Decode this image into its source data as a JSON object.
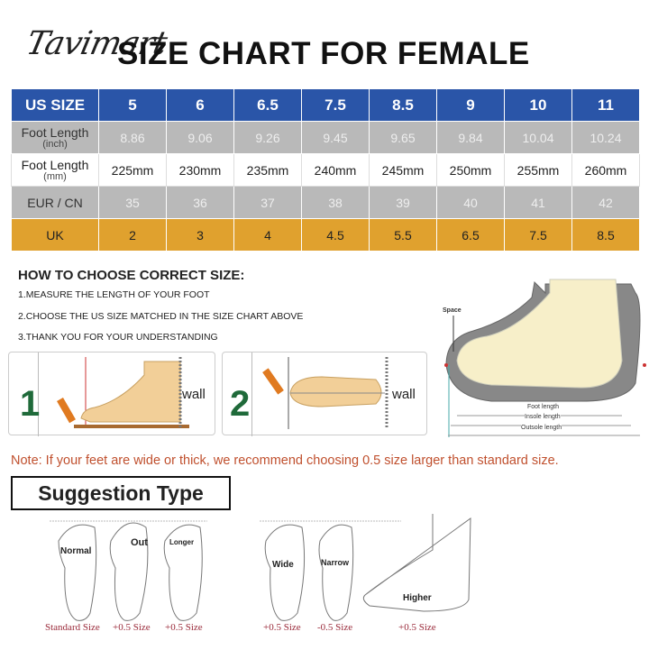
{
  "logo": "Tavimart",
  "title": "SIZE CHART FOR FEMALE",
  "table": {
    "header": {
      "label": "US SIZE",
      "values": [
        "5",
        "6",
        "6.5",
        "7.5",
        "8.5",
        "9",
        "10",
        "11"
      ]
    },
    "foot_inch": {
      "label": "Foot Length",
      "unit": "(inch)",
      "values": [
        "8.86",
        "9.06",
        "9.26",
        "9.45",
        "9.65",
        "9.84",
        "10.04",
        "10.24"
      ]
    },
    "foot_mm": {
      "label": "Foot Length",
      "unit": "(mm)",
      "values": [
        "225mm",
        "230mm",
        "235mm",
        "240mm",
        "245mm",
        "250mm",
        "255mm",
        "260mm"
      ]
    },
    "eur": {
      "label": "EUR / CN",
      "values": [
        "35",
        "36",
        "37",
        "38",
        "39",
        "40",
        "41",
        "42"
      ]
    },
    "uk": {
      "label": "UK",
      "values": [
        "2",
        "3",
        "4",
        "4.5",
        "5.5",
        "6.5",
        "7.5",
        "8.5"
      ]
    }
  },
  "howto": {
    "title": "HOW TO CHOOSE CORRECT SIZE:",
    "steps": [
      "1.MEASURE THE LENGTH OF YOUR FOOT",
      "2.CHOOSE THE US SIZE MATCHED IN THE SIZE CHART ABOVE",
      "3.THANK YOU FOR YOUR UNDERSTANDING"
    ]
  },
  "panels": [
    {
      "number": "1",
      "wall": "wall"
    },
    {
      "number": "2",
      "wall": "wall"
    }
  ],
  "diagram": {
    "space": "Space",
    "foot_length": "Foot length",
    "insole_length": "Insole length",
    "outsole_length": "Outsole length"
  },
  "note": "Note: If your feet are wide or thick, we recommend choosing 0.5 size larger than standard size.",
  "suggestion": {
    "title": "Suggestion Type",
    "types": [
      {
        "label": "Normal",
        "size": "Standard Size"
      },
      {
        "label": "Out",
        "size": "+0.5 Size"
      },
      {
        "label": "Longer",
        "size": "+0.5 Size"
      },
      {
        "label": "Wide",
        "size": "+0.5 Size"
      },
      {
        "label": "Narrow",
        "size": "-0.5 Size"
      },
      {
        "label": "Higher",
        "size": "+0.5 Size"
      }
    ]
  },
  "colors": {
    "header": "#2a55a8",
    "gray_row": "#b9b9b9",
    "uk_row": "#e0a12e",
    "note": "#c0502e",
    "size_label": "#9a2a3a"
  }
}
